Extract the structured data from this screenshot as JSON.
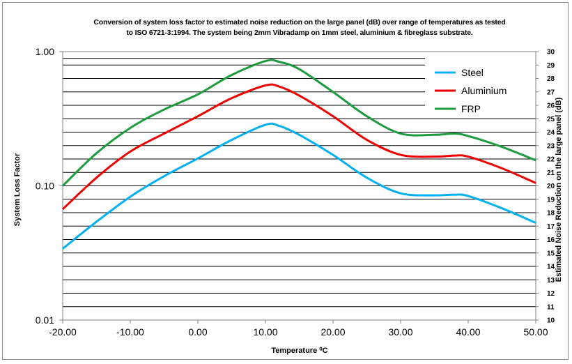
{
  "chart_data": {
    "type": "line",
    "title_line1": "Conversion of system loss factor to estimated noise reduction on the large panel (dB) over range of temperatures as tested",
    "title_line2": "to ISO  6721-3:1994. The system being 2mm Vibradamp on  1mm steel, aluminium & fibreglass substrate.",
    "xlabel": "Temperature ⁰C",
    "ylabel": "System Loss Factor",
    "y2label": "Estimated Noise Reduction on the large panel (dB)",
    "x_ticks": [
      "-20.00",
      "-10.00",
      "0.00",
      "10.00",
      "20.00",
      "30.00",
      "40.00",
      "50.00"
    ],
    "y_ticks": [
      "0.01",
      "0.10",
      "1.00"
    ],
    "y2_ticks": [
      "10",
      "11",
      "12",
      "13",
      "14",
      "15",
      "16",
      "17",
      "18",
      "19",
      "20",
      "21",
      "22",
      "23",
      "24",
      "25",
      "26",
      "27",
      "28",
      "29",
      "30"
    ],
    "xlim": [
      -20,
      50
    ],
    "ylim": [
      0.01,
      1.0
    ],
    "y2lim": [
      10,
      30
    ],
    "y_scale": "log",
    "legend_position": "top-right",
    "series": [
      {
        "name": "Steel",
        "color": "#00b0f0",
        "x": [
          -20,
          -15,
          -10,
          -5,
          0,
          5,
          10,
          12,
          15,
          20,
          25,
          30,
          35,
          38,
          40,
          45,
          50
        ],
        "y": [
          0.034,
          0.054,
          0.083,
          0.118,
          0.16,
          0.22,
          0.285,
          0.28,
          0.24,
          0.17,
          0.115,
          0.088,
          0.085,
          0.086,
          0.084,
          0.068,
          0.053
        ]
      },
      {
        "name": "Aluminium",
        "color": "#ee0000",
        "x": [
          -20,
          -15,
          -10,
          -5,
          0,
          5,
          10,
          12,
          15,
          20,
          25,
          30,
          35,
          38,
          40,
          45,
          50
        ],
        "y": [
          0.067,
          0.115,
          0.18,
          0.245,
          0.33,
          0.45,
          0.56,
          0.55,
          0.47,
          0.33,
          0.22,
          0.17,
          0.165,
          0.168,
          0.165,
          0.135,
          0.105
        ]
      },
      {
        "name": "FRP",
        "color": "#1e9b3e",
        "x": [
          -20,
          -15,
          -10,
          -5,
          0,
          5,
          10,
          12,
          15,
          20,
          25,
          30,
          35,
          38,
          40,
          45,
          50
        ],
        "y": [
          0.1,
          0.175,
          0.27,
          0.37,
          0.48,
          0.67,
          0.85,
          0.84,
          0.74,
          0.5,
          0.33,
          0.245,
          0.24,
          0.245,
          0.235,
          0.195,
          0.155
        ]
      }
    ]
  }
}
